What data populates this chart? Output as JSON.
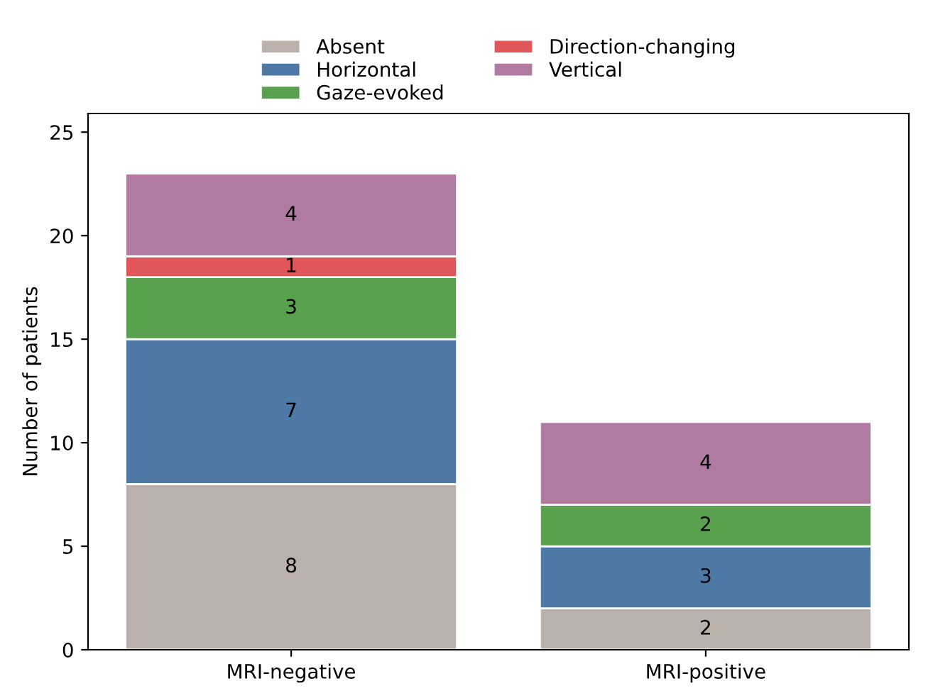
{
  "chart_data": {
    "type": "bar",
    "stacked": true,
    "ylabel": "Number of patients",
    "categories": [
      "MRI-negative",
      "MRI-positive"
    ],
    "series": [
      {
        "name": "Absent",
        "color": "#bab0ac",
        "values": [
          8,
          2
        ],
        "value_labels": [
          "8",
          "2"
        ]
      },
      {
        "name": "Horizontal",
        "color": "#4e79a7",
        "values": [
          7,
          3
        ],
        "value_labels": [
          "7",
          "3"
        ]
      },
      {
        "name": "Gaze-evoked",
        "color": "#59a14f",
        "values": [
          3,
          2
        ],
        "value_labels": [
          "3",
          "2"
        ]
      },
      {
        "name": "Direction-changing",
        "color": "#e15759",
        "values": [
          1,
          0
        ],
        "value_labels": [
          "1",
          null
        ]
      },
      {
        "name": "Vertical",
        "color": "#b07aa1",
        "values": [
          4,
          4
        ],
        "value_labels": [
          "4",
          "4"
        ]
      }
    ],
    "ylim": [
      0,
      25.9
    ],
    "yticks": [
      0,
      5,
      10,
      15,
      20,
      25
    ],
    "grid": false,
    "legend": "top"
  }
}
